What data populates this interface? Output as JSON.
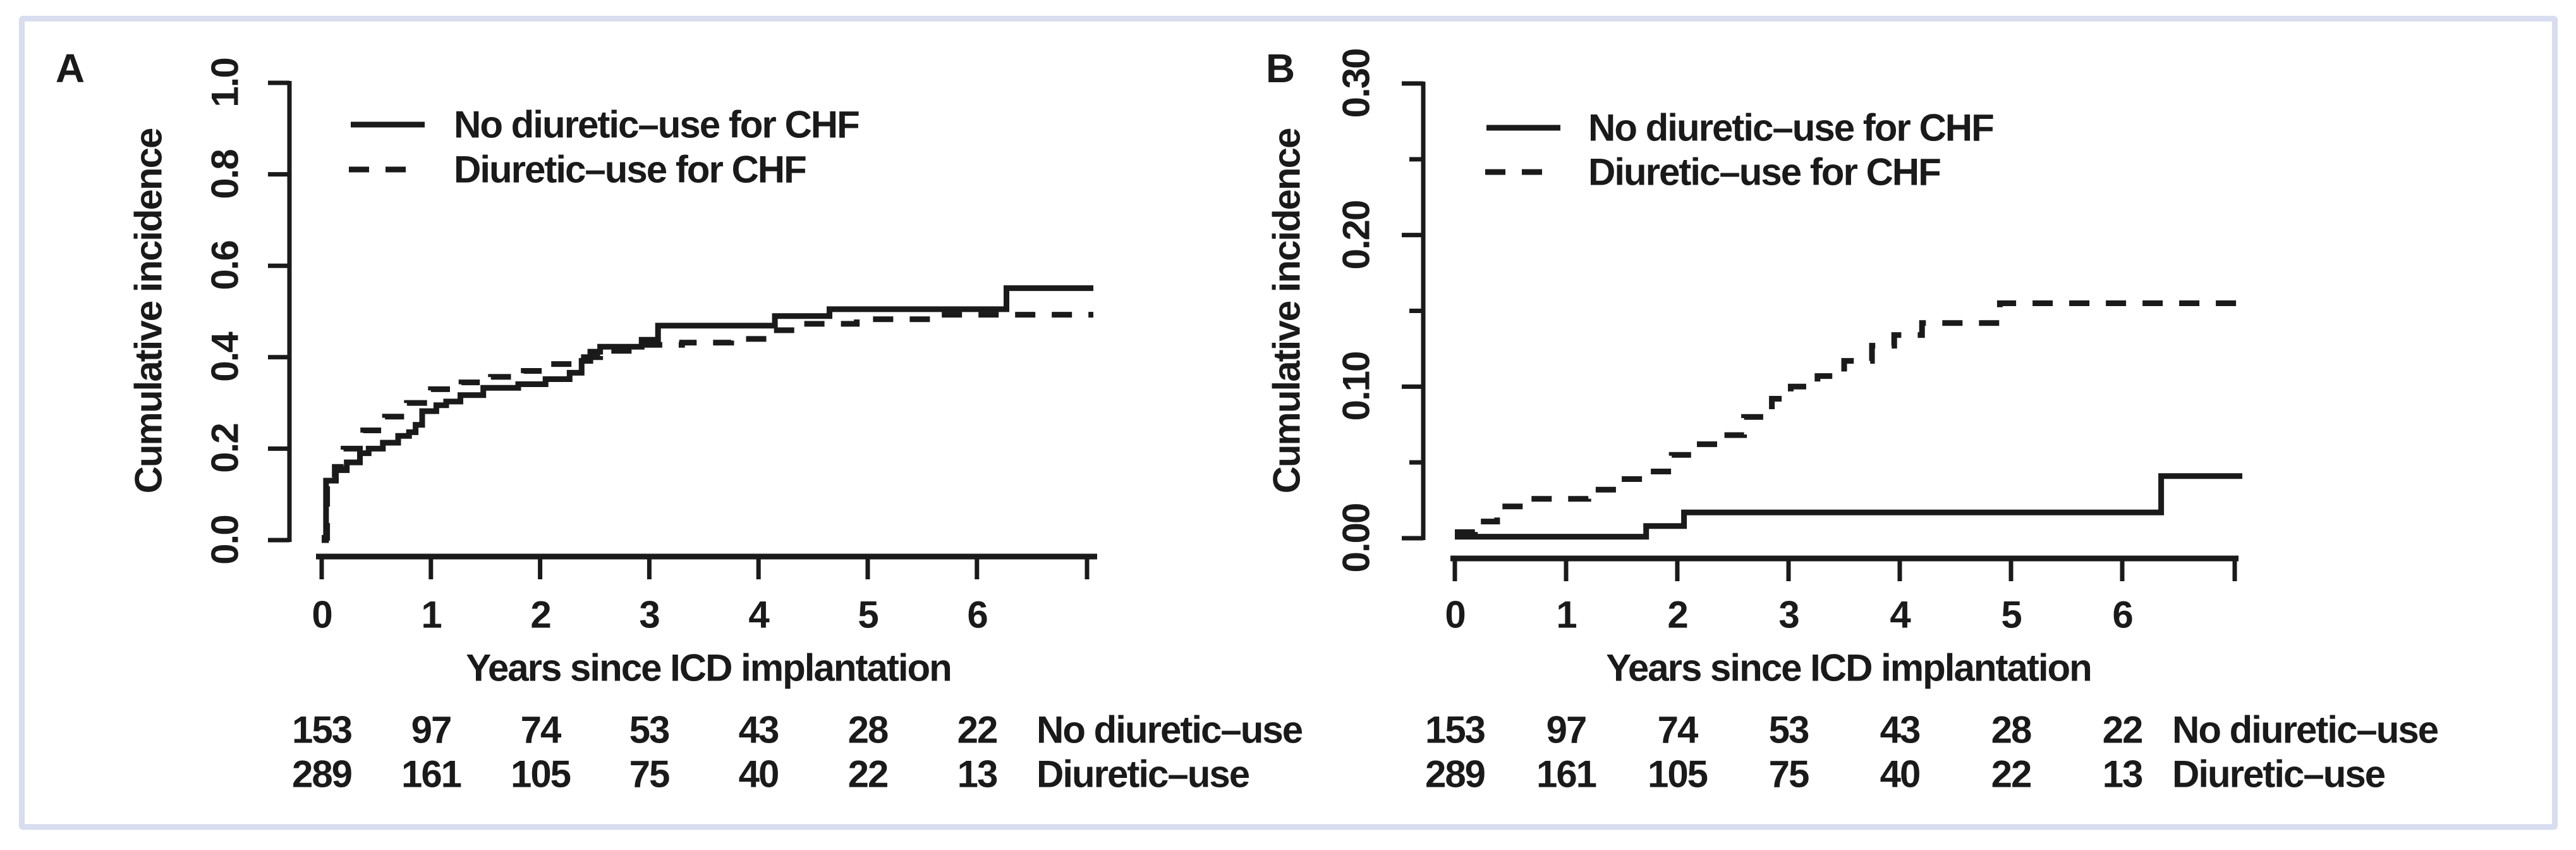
{
  "figure": {
    "background": "#ffffff",
    "frame_color": "#d8ddef",
    "ink_color": "#1a1a1a"
  },
  "chart_data": [
    {
      "type": "line",
      "panel_label": "A",
      "subtype": "cumulative-incidence-step-curves",
      "xlabel": "Years since ICD implantation",
      "ylabel": "Cumulative incidence",
      "xlim": [
        0,
        7.1
      ],
      "ylim": [
        0,
        1.0
      ],
      "grid": false,
      "legend_position": "top-left-inside",
      "x_tick_values": [
        0,
        1,
        2,
        3,
        4,
        5,
        6
      ],
      "x_tick_labels": [
        "0",
        "1",
        "2",
        "3",
        "4",
        "5",
        "6"
      ],
      "y_ticks": [
        {
          "value": 1.0,
          "label": "1.0",
          "major": true
        },
        {
          "value": 0.8,
          "label": "0.8",
          "major": true
        },
        {
          "value": 0.6,
          "label": "0.6",
          "major": true
        },
        {
          "value": 0.4,
          "label": "0.4",
          "major": true
        },
        {
          "value": 0.2,
          "label": "0.2",
          "major": true
        },
        {
          "value": 0.0,
          "label": "0.0",
          "major": true
        }
      ],
      "series": [
        {
          "name": "No diuretic–use for CHF",
          "style": "solid",
          "step_points": [
            [
              0,
              0
            ],
            [
              0.04,
              0.13
            ],
            [
              0.13,
              0.153
            ],
            [
              0.23,
              0.17
            ],
            [
              0.35,
              0.19
            ],
            [
              0.43,
              0.2
            ],
            [
              0.56,
              0.213
            ],
            [
              0.7,
              0.228
            ],
            [
              0.8,
              0.236
            ],
            [
              0.86,
              0.252
            ],
            [
              0.92,
              0.282
            ],
            [
              1.05,
              0.295
            ],
            [
              1.14,
              0.303
            ],
            [
              1.27,
              0.317
            ],
            [
              1.48,
              0.333
            ],
            [
              1.8,
              0.341
            ],
            [
              2.05,
              0.352
            ],
            [
              2.27,
              0.366
            ],
            [
              2.38,
              0.392
            ],
            [
              2.46,
              0.412
            ],
            [
              2.55,
              0.423
            ],
            [
              2.93,
              0.438
            ],
            [
              3.08,
              0.469
            ],
            [
              4.15,
              0.49
            ],
            [
              4.65,
              0.505
            ],
            [
              6.27,
              0.551
            ]
          ]
        },
        {
          "name": "Diuretic–use for CHF",
          "style": "dashed",
          "step_points": [
            [
              0,
              0.005
            ],
            [
              0.05,
              0.12
            ],
            [
              0.12,
              0.16
            ],
            [
              0.2,
              0.2
            ],
            [
              0.38,
              0.24
            ],
            [
              0.58,
              0.27
            ],
            [
              0.78,
              0.3
            ],
            [
              1.0,
              0.33
            ],
            [
              1.28,
              0.345
            ],
            [
              1.55,
              0.357
            ],
            [
              1.85,
              0.37
            ],
            [
              2.1,
              0.385
            ],
            [
              2.35,
              0.4
            ],
            [
              2.55,
              0.414
            ],
            [
              2.95,
              0.427
            ],
            [
              3.3,
              0.432
            ],
            [
              3.75,
              0.44
            ],
            [
              4.08,
              0.459
            ],
            [
              4.4,
              0.473
            ],
            [
              4.9,
              0.483
            ],
            [
              5.6,
              0.493
            ]
          ]
        }
      ],
      "risk_table": {
        "rows": [
          {
            "label": "No diuretic–use",
            "counts": [
              "153",
              "97",
              "74",
              "53",
              "43",
              "28",
              "22"
            ]
          },
          {
            "label": "Diuretic–use",
            "counts": [
              "289",
              "161",
              "105",
              "75",
              "40",
              "22",
              "13"
            ]
          }
        ]
      }
    },
    {
      "type": "line",
      "panel_label": "B",
      "subtype": "cumulative-incidence-step-curves",
      "xlabel": "Years since ICD implantation",
      "ylabel": "Cumulative incidence",
      "xlim": [
        0,
        7.1
      ],
      "ylim": [
        0,
        0.3
      ],
      "grid": false,
      "legend_position": "top-left-inside",
      "x_tick_values": [
        0,
        1,
        2,
        3,
        4,
        5,
        6
      ],
      "x_tick_labels": [
        "0",
        "1",
        "2",
        "3",
        "4",
        "5",
        "6"
      ],
      "y_ticks": [
        {
          "value": 0.3,
          "label": "0.30",
          "major": true
        },
        {
          "value": 0.25,
          "label": "",
          "major": false
        },
        {
          "value": 0.2,
          "label": "0.20",
          "major": true
        },
        {
          "value": 0.15,
          "label": "",
          "major": false
        },
        {
          "value": 0.1,
          "label": "0.10",
          "major": true
        },
        {
          "value": 0.05,
          "label": "",
          "major": false
        },
        {
          "value": 0.0,
          "label": "0.00",
          "major": true
        }
      ],
      "series": [
        {
          "name": "No diuretic–use for CHF",
          "style": "solid",
          "step_points": [
            [
              0,
              0.001
            ],
            [
              1.72,
              0.008
            ],
            [
              2.06,
              0.017
            ],
            [
              6.35,
              0.041
            ]
          ]
        },
        {
          "name": "Diuretic–use for CHF",
          "style": "dashed",
          "step_points": [
            [
              0,
              0.004
            ],
            [
              0.18,
              0.011
            ],
            [
              0.38,
              0.021
            ],
            [
              0.62,
              0.026
            ],
            [
              1.2,
              0.032
            ],
            [
              1.45,
              0.039
            ],
            [
              1.75,
              0.044
            ],
            [
              1.95,
              0.055
            ],
            [
              2.15,
              0.062
            ],
            [
              2.4,
              0.068
            ],
            [
              2.6,
              0.08
            ],
            [
              2.85,
              0.092
            ],
            [
              3.02,
              0.1
            ],
            [
              3.26,
              0.107
            ],
            [
              3.5,
              0.117
            ],
            [
              3.75,
              0.127
            ],
            [
              3.95,
              0.134
            ],
            [
              4.2,
              0.142
            ],
            [
              4.9,
              0.155
            ]
          ]
        }
      ],
      "risk_table": {
        "rows": [
          {
            "label": "No diuretic–use",
            "counts": [
              "153",
              "97",
              "74",
              "53",
              "43",
              "28",
              "22"
            ]
          },
          {
            "label": "Diuretic–use",
            "counts": [
              "289",
              "161",
              "105",
              "75",
              "40",
              "22",
              "13"
            ]
          }
        ]
      }
    }
  ]
}
